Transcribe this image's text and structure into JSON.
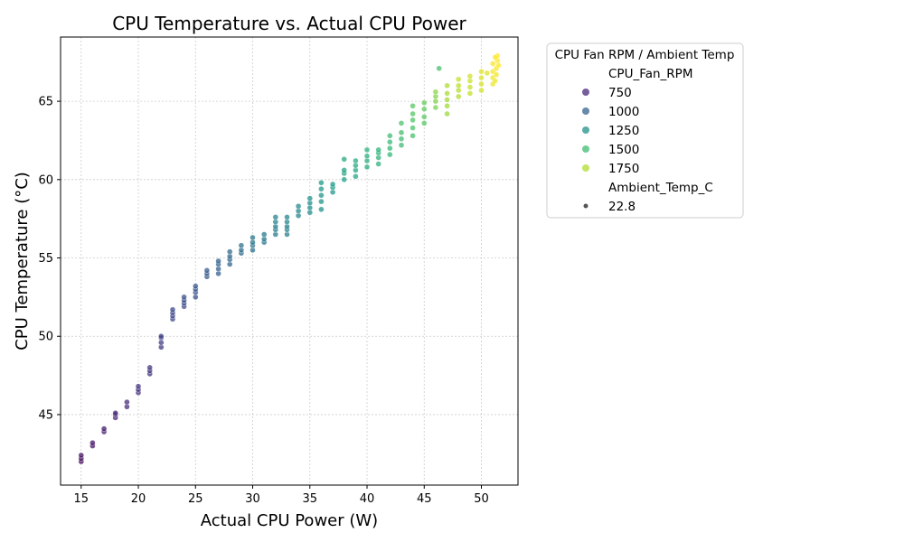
{
  "chart_data": {
    "type": "scatter",
    "title": "CPU Temperature vs. Actual CPU Power",
    "xlabel": "Actual CPU Power (W)",
    "ylabel": "CPU Temperature (°C)",
    "xlim": [
      13.2,
      53.2
    ],
    "ylim": [
      40.5,
      69.1
    ],
    "xticks": [
      15,
      20,
      25,
      30,
      35,
      40,
      45,
      50
    ],
    "yticks": [
      45,
      50,
      55,
      60,
      65
    ],
    "grid": true,
    "colormap": "viridis",
    "color_variable": "CPU_Fan_RPM",
    "color_range": [
      600,
      1900
    ],
    "size_variable": "Ambient_Temp_C",
    "points": [
      [
        15,
        42.0,
        620
      ],
      [
        15,
        42.2,
        640
      ],
      [
        15,
        42.4,
        660
      ],
      [
        16,
        43.0,
        660
      ],
      [
        16,
        43.2,
        680
      ],
      [
        17,
        43.9,
        700
      ],
      [
        17,
        44.1,
        710
      ],
      [
        18,
        44.8,
        720
      ],
      [
        18,
        45.0,
        740
      ],
      [
        18,
        45.1,
        740
      ],
      [
        19,
        45.5,
        760
      ],
      [
        19,
        45.8,
        770
      ],
      [
        20,
        46.4,
        780
      ],
      [
        20,
        46.6,
        790
      ],
      [
        20,
        46.8,
        800
      ],
      [
        21,
        47.6,
        800
      ],
      [
        21,
        47.8,
        810
      ],
      [
        21,
        48.0,
        820
      ],
      [
        22,
        49.3,
        830
      ],
      [
        22,
        49.6,
        840
      ],
      [
        22,
        49.9,
        850
      ],
      [
        22,
        50.0,
        860
      ],
      [
        23,
        51.1,
        870
      ],
      [
        23,
        51.3,
        880
      ],
      [
        23,
        51.5,
        890
      ],
      [
        23,
        51.7,
        890
      ],
      [
        24,
        51.9,
        900
      ],
      [
        24,
        52.1,
        910
      ],
      [
        24,
        52.3,
        920
      ],
      [
        24,
        52.5,
        920
      ],
      [
        25,
        52.5,
        930
      ],
      [
        25,
        52.8,
        940
      ],
      [
        25,
        53.0,
        950
      ],
      [
        25,
        53.2,
        950
      ],
      [
        26,
        53.8,
        960
      ],
      [
        26,
        54.0,
        970
      ],
      [
        26,
        54.2,
        980
      ],
      [
        27,
        54.0,
        990
      ],
      [
        27,
        54.3,
        1000
      ],
      [
        27,
        54.6,
        1010
      ],
      [
        27,
        54.8,
        1010
      ],
      [
        28,
        54.6,
        1020
      ],
      [
        28,
        54.9,
        1030
      ],
      [
        28,
        55.1,
        1040
      ],
      [
        28,
        55.4,
        1050
      ],
      [
        29,
        55.3,
        1060
      ],
      [
        29,
        55.5,
        1070
      ],
      [
        29,
        55.8,
        1080
      ],
      [
        30,
        55.5,
        1090
      ],
      [
        30,
        55.8,
        1100
      ],
      [
        30,
        56.0,
        1110
      ],
      [
        30,
        56.3,
        1110
      ],
      [
        31,
        56.0,
        1120
      ],
      [
        31,
        56.2,
        1130
      ],
      [
        31,
        56.5,
        1140
      ],
      [
        32,
        56.5,
        1140
      ],
      [
        32,
        56.8,
        1150
      ],
      [
        32,
        57.0,
        1160
      ],
      [
        32,
        57.3,
        1170
      ],
      [
        32,
        57.6,
        1170
      ],
      [
        33,
        56.5,
        1160
      ],
      [
        33,
        56.8,
        1170
      ],
      [
        33,
        57.0,
        1180
      ],
      [
        33,
        57.3,
        1190
      ],
      [
        33,
        57.6,
        1190
      ],
      [
        34,
        57.7,
        1200
      ],
      [
        34,
        58.0,
        1210
      ],
      [
        34,
        58.3,
        1220
      ],
      [
        35,
        57.9,
        1230
      ],
      [
        35,
        58.2,
        1240
      ],
      [
        35,
        58.5,
        1250
      ],
      [
        35,
        58.8,
        1260
      ],
      [
        36,
        58.1,
        1260
      ],
      [
        36,
        58.6,
        1270
      ],
      [
        36,
        59.0,
        1280
      ],
      [
        36,
        59.4,
        1290
      ],
      [
        36,
        59.8,
        1300
      ],
      [
        37,
        59.2,
        1290
      ],
      [
        37,
        59.5,
        1300
      ],
      [
        37,
        59.7,
        1310
      ],
      [
        38,
        60.0,
        1330
      ],
      [
        38,
        60.4,
        1340
      ],
      [
        38,
        60.6,
        1350
      ],
      [
        38,
        61.3,
        1380
      ],
      [
        39,
        60.2,
        1360
      ],
      [
        39,
        60.6,
        1370
      ],
      [
        39,
        60.9,
        1380
      ],
      [
        39,
        61.2,
        1390
      ],
      [
        40,
        60.8,
        1400
      ],
      [
        40,
        61.2,
        1410
      ],
      [
        40,
        61.5,
        1420
      ],
      [
        40,
        61.9,
        1430
      ],
      [
        41,
        61.0,
        1430
      ],
      [
        41,
        61.4,
        1440
      ],
      [
        41,
        61.7,
        1450
      ],
      [
        41,
        61.9,
        1450
      ],
      [
        42,
        61.6,
        1460
      ],
      [
        42,
        62.0,
        1470
      ],
      [
        42,
        62.4,
        1480
      ],
      [
        42,
        62.8,
        1490
      ],
      [
        43,
        62.2,
        1490
      ],
      [
        43,
        62.6,
        1500
      ],
      [
        43,
        63.0,
        1510
      ],
      [
        43,
        63.6,
        1530
      ],
      [
        44,
        62.8,
        1520
      ],
      [
        44,
        63.3,
        1530
      ],
      [
        44,
        63.8,
        1540
      ],
      [
        44,
        64.2,
        1550
      ],
      [
        44,
        64.7,
        1560
      ],
      [
        45,
        63.6,
        1560
      ],
      [
        45,
        64.0,
        1570
      ],
      [
        45,
        64.5,
        1580
      ],
      [
        45,
        64.9,
        1590
      ],
      [
        46,
        64.6,
        1640
      ],
      [
        46,
        65.0,
        1650
      ],
      [
        46,
        65.3,
        1660
      ],
      [
        46,
        65.6,
        1670
      ],
      [
        46.3,
        67.1,
        1520
      ],
      [
        47,
        64.2,
        1700
      ],
      [
        47,
        64.7,
        1710
      ],
      [
        47,
        65.1,
        1720
      ],
      [
        47,
        65.5,
        1730
      ],
      [
        47,
        66.0,
        1740
      ],
      [
        48,
        65.3,
        1750
      ],
      [
        48,
        65.7,
        1760
      ],
      [
        48,
        66.0,
        1770
      ],
      [
        48,
        66.4,
        1780
      ],
      [
        49,
        65.5,
        1780
      ],
      [
        49,
        65.9,
        1790
      ],
      [
        49,
        66.3,
        1800
      ],
      [
        49,
        66.6,
        1810
      ],
      [
        50,
        65.7,
        1810
      ],
      [
        50,
        66.1,
        1820
      ],
      [
        50,
        66.5,
        1830
      ],
      [
        50,
        66.9,
        1840
      ],
      [
        50.5,
        66.8,
        1840
      ],
      [
        51,
        66.1,
        1860
      ],
      [
        51,
        66.5,
        1870
      ],
      [
        51,
        66.9,
        1880
      ],
      [
        51,
        67.4,
        1890
      ],
      [
        51.2,
        66.3,
        1870
      ],
      [
        51.3,
        66.7,
        1880
      ],
      [
        51.3,
        67.1,
        1890
      ],
      [
        51.4,
        67.6,
        1900
      ],
      [
        51.4,
        67.9,
        1900
      ],
      [
        51.5,
        67.3,
        1900
      ],
      [
        51.2,
        67.8,
        1895
      ]
    ]
  },
  "legend": {
    "title": "CPU Fan RPM / Ambient Temp",
    "hue_header": "CPU_Fan_RPM",
    "hue_entries": [
      {
        "label": "750",
        "value": 750
      },
      {
        "label": "1000",
        "value": 1000
      },
      {
        "label": "1250",
        "value": 1250
      },
      {
        "label": "1500",
        "value": 1500
      },
      {
        "label": "1750",
        "value": 1750
      }
    ],
    "size_header": "Ambient_Temp_C",
    "size_entries": [
      {
        "label": "22.8"
      }
    ],
    "placement": "outside-right"
  }
}
